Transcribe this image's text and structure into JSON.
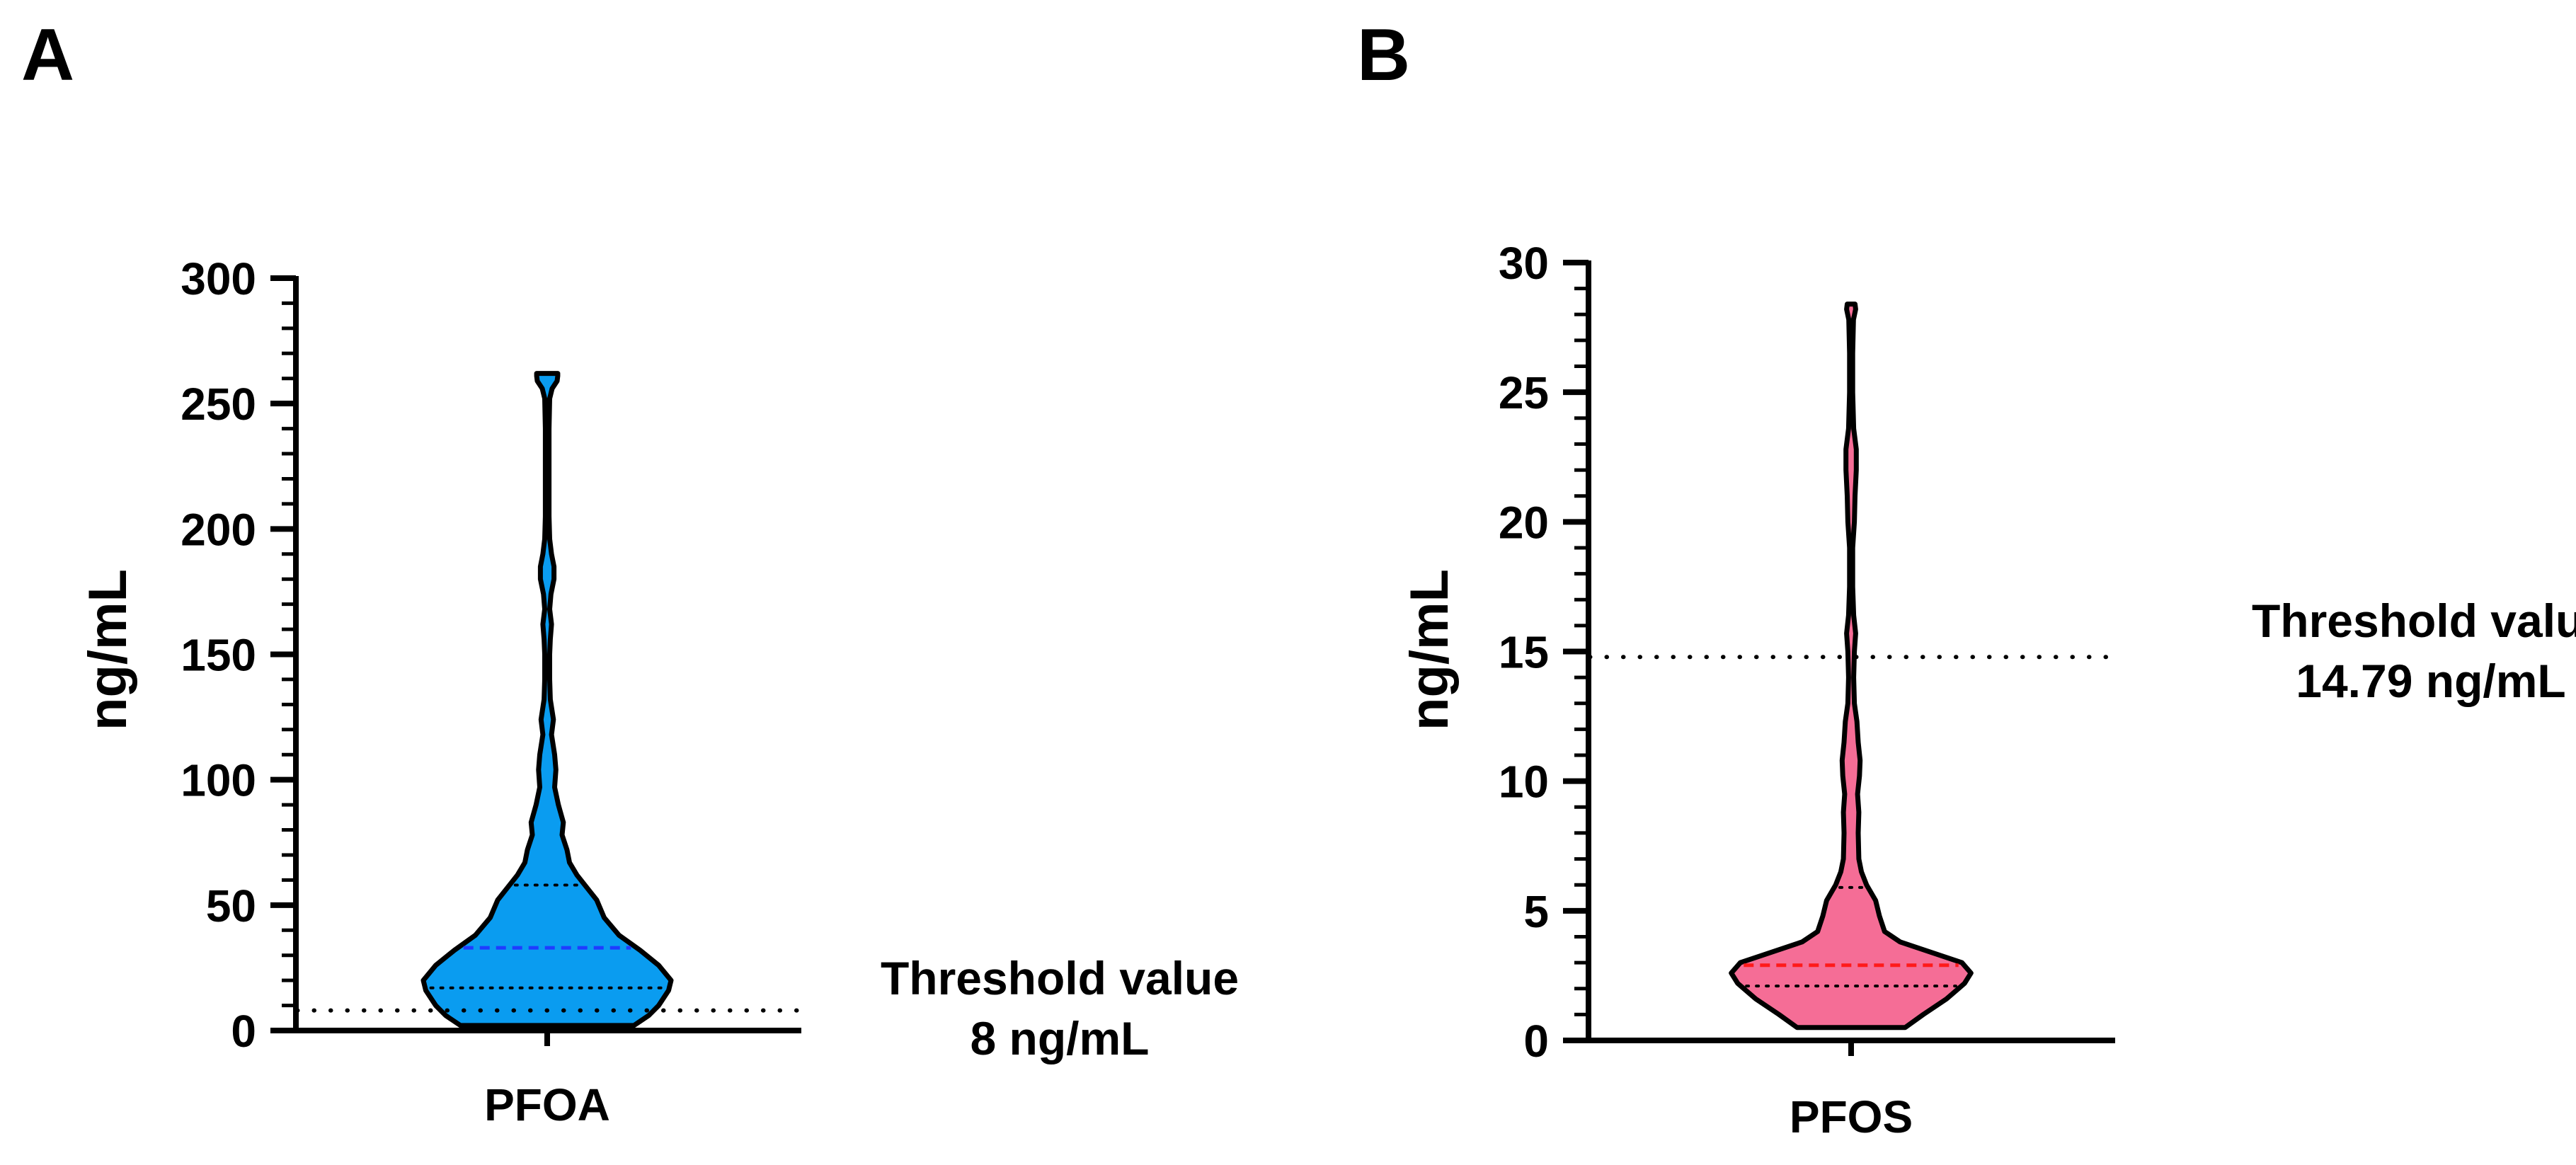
{
  "chart_data": [
    {
      "type": "violin",
      "panel": "A",
      "ylabel": "ng/mL",
      "categories": [
        "PFOA"
      ],
      "ylim": [
        0,
        300
      ],
      "yticks": [
        "0",
        "50",
        "100",
        "150",
        "200",
        "250",
        "300"
      ],
      "minor_tick_step": 10,
      "color": "#0a9cf0",
      "median_color": "#1f3cff",
      "median": 33,
      "quartiles": [
        17,
        58
      ],
      "range": [
        2,
        262
      ],
      "density_profile": [
        [
          2,
          0.7
        ],
        [
          6,
          0.82
        ],
        [
          10,
          0.9
        ],
        [
          16,
          0.98
        ],
        [
          20,
          1.0
        ],
        [
          26,
          0.9
        ],
        [
          32,
          0.75
        ],
        [
          38,
          0.58
        ],
        [
          45,
          0.46
        ],
        [
          52,
          0.4
        ],
        [
          57,
          0.32
        ],
        [
          62,
          0.24
        ],
        [
          67,
          0.18
        ],
        [
          72,
          0.16
        ],
        [
          78,
          0.12
        ],
        [
          83,
          0.13
        ],
        [
          90,
          0.09
        ],
        [
          97,
          0.06
        ],
        [
          104,
          0.07
        ],
        [
          110,
          0.06
        ],
        [
          118,
          0.035
        ],
        [
          124,
          0.05
        ],
        [
          132,
          0.025
        ],
        [
          140,
          0.02
        ],
        [
          150,
          0.02
        ],
        [
          156,
          0.025
        ],
        [
          162,
          0.035
        ],
        [
          168,
          0.02
        ],
        [
          174,
          0.03
        ],
        [
          180,
          0.055
        ],
        [
          185,
          0.055
        ],
        [
          190,
          0.035
        ],
        [
          196,
          0.02
        ],
        [
          205,
          0.015
        ],
        [
          220,
          0.015
        ],
        [
          240,
          0.015
        ],
        [
          252,
          0.02
        ],
        [
          256,
          0.04
        ],
        [
          259,
          0.08
        ],
        [
          261,
          0.085
        ],
        [
          262,
          0.085
        ]
      ],
      "threshold": {
        "value": 8,
        "line1": "Threshold value",
        "line2": "8 ng/mL"
      }
    },
    {
      "type": "violin",
      "panel": "B",
      "ylabel": "ng/mL",
      "categories": [
        "PFOS"
      ],
      "ylim": [
        0,
        30
      ],
      "yticks": [
        "0",
        "5",
        "10",
        "15",
        "20",
        "25",
        "30"
      ],
      "minor_tick_step": 1,
      "color": "#f56d96",
      "median_color": "#ff1a1a",
      "median": 2.9,
      "quartiles": [
        2.1,
        5.9
      ],
      "range": [
        0.5,
        28.4
      ],
      "density_profile": [
        [
          0.5,
          0.42
        ],
        [
          1.0,
          0.56
        ],
        [
          1.6,
          0.74
        ],
        [
          2.2,
          0.88
        ],
        [
          2.6,
          0.93
        ],
        [
          3.0,
          0.86
        ],
        [
          3.4,
          0.62
        ],
        [
          3.8,
          0.38
        ],
        [
          4.2,
          0.26
        ],
        [
          4.8,
          0.22
        ],
        [
          5.4,
          0.19
        ],
        [
          6.0,
          0.12
        ],
        [
          6.5,
          0.08
        ],
        [
          7.0,
          0.06
        ],
        [
          8.0,
          0.055
        ],
        [
          8.8,
          0.06
        ],
        [
          9.5,
          0.05
        ],
        [
          10.2,
          0.065
        ],
        [
          10.8,
          0.07
        ],
        [
          11.5,
          0.055
        ],
        [
          12.3,
          0.045
        ],
        [
          13.0,
          0.025
        ],
        [
          14.0,
          0.02
        ],
        [
          15.0,
          0.025
        ],
        [
          15.7,
          0.035
        ],
        [
          16.4,
          0.02
        ],
        [
          17.5,
          0.012
        ],
        [
          19.0,
          0.012
        ],
        [
          20.0,
          0.025
        ],
        [
          21.0,
          0.03
        ],
        [
          22.0,
          0.04
        ],
        [
          22.8,
          0.04
        ],
        [
          23.6,
          0.02
        ],
        [
          25.0,
          0.012
        ],
        [
          26.5,
          0.012
        ],
        [
          27.8,
          0.018
        ],
        [
          28.2,
          0.035
        ],
        [
          28.4,
          0.03
        ]
      ],
      "threshold": {
        "value": 14.79,
        "line1": "Threshold value",
        "line2": "14.79 ng/mL"
      }
    }
  ]
}
